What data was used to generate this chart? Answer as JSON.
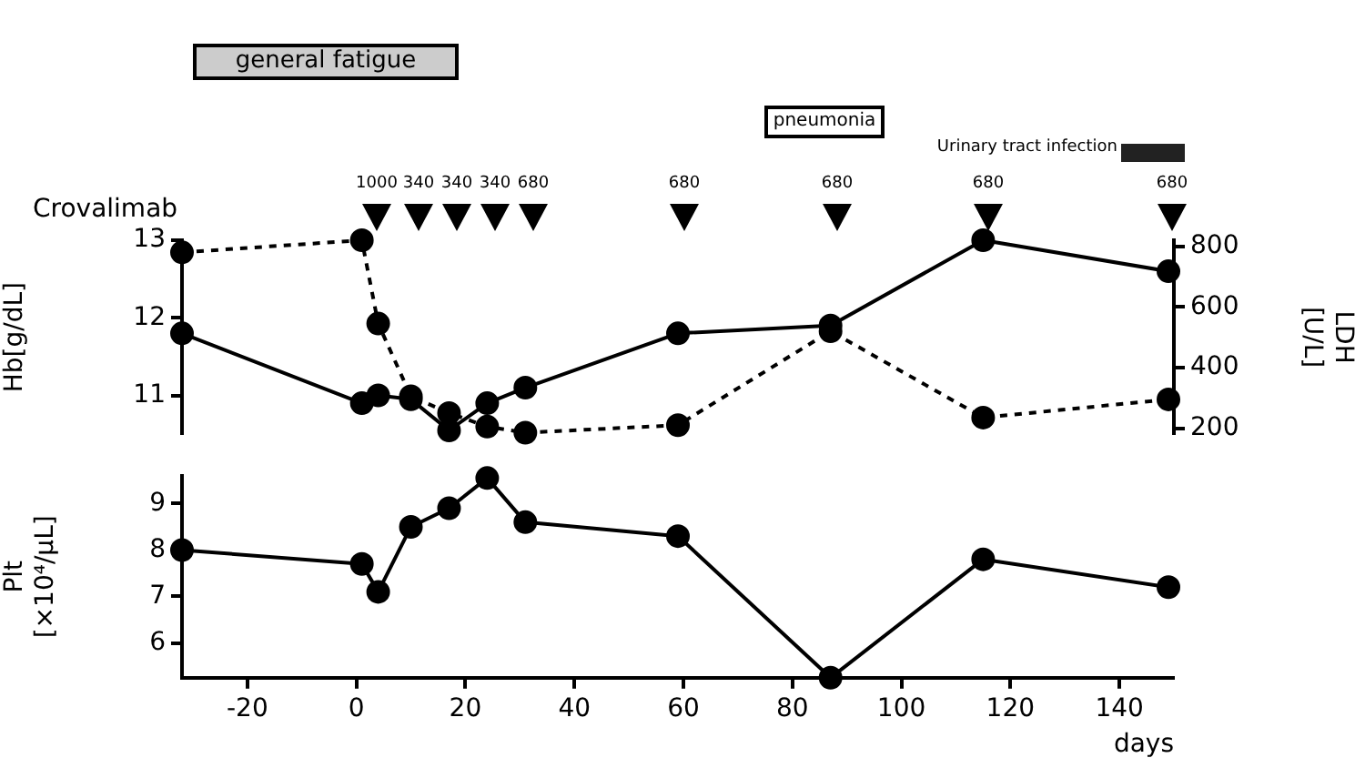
{
  "chart_data": [
    {
      "type": "line",
      "ylabel": "Hb[g/dL]",
      "y2label": "LDH [U/L]",
      "x": [
        -32,
        1,
        4,
        10,
        17,
        24,
        31,
        59,
        87,
        115,
        149
      ],
      "series": [
        {
          "color": "#000000",
          "line_style": "solid",
          "values": [
            11.8,
            10.9,
            11.0,
            10.95,
            10.55,
            10.9,
            11.1,
            11.8,
            11.9,
            13.0,
            12.6
          ]
        },
        {
          "color": "#000000",
          "line_style": "dashed",
          "axis": "y2",
          "values": [
            780,
            820,
            545,
            305,
            250,
            205,
            185,
            210,
            520,
            235,
            295
          ]
        }
      ],
      "xlim": [
        -32,
        150
      ],
      "ylim": [
        10.5,
        13
      ],
      "yticks": [
        11,
        12,
        13
      ],
      "y2lim": [
        180,
        820
      ],
      "y2ticks": [
        200,
        400,
        600,
        800
      ],
      "tick_labels": [
        "y",
        "y2"
      ],
      "grid": false,
      "legend": false,
      "marker": "circle",
      "annotations": [
        "general fatigue",
        "pneumonia",
        "Urinary tract infection",
        "Crovalimab",
        "1000",
        "340",
        "340",
        "340",
        "680",
        "680",
        "680",
        "680",
        "680"
      ]
    },
    {
      "type": "line",
      "ylabel": "Plt [×10⁴/μL]",
      "xlabel": "days",
      "x": [
        -32,
        1,
        4,
        10,
        17,
        24,
        31,
        59,
        87,
        115,
        149
      ],
      "series": [
        {
          "color": "#000000",
          "line_style": "solid",
          "values": [
            8.0,
            7.7,
            7.1,
            8.5,
            8.9,
            9.55,
            8.6,
            8.3,
            5.25,
            7.8,
            7.2
          ]
        }
      ],
      "xlim": [
        -32,
        150
      ],
      "xticks": [
        -20,
        0,
        20,
        40,
        60,
        80,
        100,
        120,
        140
      ],
      "ylim": [
        5.25,
        9.6
      ],
      "yticks": [
        6,
        7,
        8,
        9
      ],
      "grid": false,
      "legend": false,
      "marker": "circle"
    }
  ]
}
